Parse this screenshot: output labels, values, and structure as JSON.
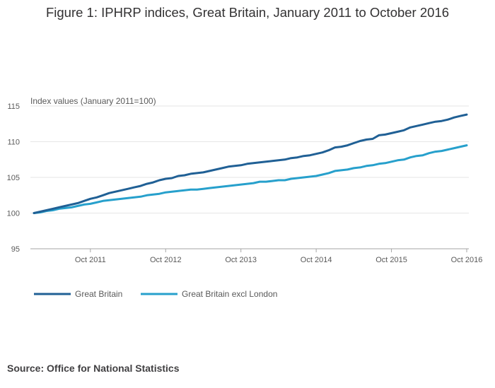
{
  "title": "Figure 1: IPHRP indices, Great Britain, January 2011 to October 2016",
  "source": "Source: Office for National Statistics",
  "colors": {
    "series1": "#206095",
    "series2": "#27a0cc",
    "grid": "#e6e6e6",
    "axis": "#a6a6a6",
    "text": "#595959"
  },
  "chart_data": {
    "type": "line",
    "title": "Figure 1: IPHRP indices, Great Britain, January 2011 to October 2016",
    "ylabel": "Index values (January 2011=100)",
    "xlabel": "",
    "ylim": [
      95,
      115
    ],
    "yticks": [
      95,
      100,
      105,
      110,
      115
    ],
    "xtick_labels": [
      "Oct 2011",
      "Oct 2012",
      "Oct 2013",
      "Oct 2014",
      "Oct 2015",
      "Oct 2016"
    ],
    "xtick_index": [
      9,
      21,
      33,
      45,
      57,
      69
    ],
    "x_start": "Jan 2011",
    "x_end": "Oct 2016",
    "n_points": 70,
    "legend_position": "bottom-left",
    "grid": true,
    "series": [
      {
        "name": "Great Britain",
        "values": [
          100.0,
          100.2,
          100.4,
          100.6,
          100.8,
          101.0,
          101.2,
          101.4,
          101.7,
          102.0,
          102.2,
          102.5,
          102.8,
          103.0,
          103.2,
          103.4,
          103.6,
          103.8,
          104.1,
          104.3,
          104.6,
          104.8,
          104.9,
          105.2,
          105.3,
          105.5,
          105.6,
          105.7,
          105.9,
          106.1,
          106.3,
          106.5,
          106.6,
          106.7,
          106.9,
          107.0,
          107.1,
          107.2,
          107.3,
          107.4,
          107.5,
          107.7,
          107.8,
          108.0,
          108.1,
          108.3,
          108.5,
          108.8,
          109.2,
          109.3,
          109.5,
          109.8,
          110.1,
          110.3,
          110.4,
          110.9,
          111.0,
          111.2,
          111.4,
          111.6,
          112.0,
          112.2,
          112.4,
          112.6,
          112.8,
          112.9,
          113.1,
          113.4,
          113.6,
          113.8
        ]
      },
      {
        "name": "Great Britain excl London",
        "values": [
          100.0,
          100.1,
          100.3,
          100.4,
          100.6,
          100.7,
          100.8,
          101.0,
          101.2,
          101.3,
          101.5,
          101.7,
          101.8,
          101.9,
          102.0,
          102.1,
          102.2,
          102.3,
          102.5,
          102.6,
          102.7,
          102.9,
          103.0,
          103.1,
          103.2,
          103.3,
          103.3,
          103.4,
          103.5,
          103.6,
          103.7,
          103.8,
          103.9,
          104.0,
          104.1,
          104.2,
          104.4,
          104.4,
          104.5,
          104.6,
          104.6,
          104.8,
          104.9,
          105.0,
          105.1,
          105.2,
          105.4,
          105.6,
          105.9,
          106.0,
          106.1,
          106.3,
          106.4,
          106.6,
          106.7,
          106.9,
          107.0,
          107.2,
          107.4,
          107.5,
          107.8,
          108.0,
          108.1,
          108.4,
          108.6,
          108.7,
          108.9,
          109.1,
          109.3,
          109.5
        ]
      }
    ]
  }
}
